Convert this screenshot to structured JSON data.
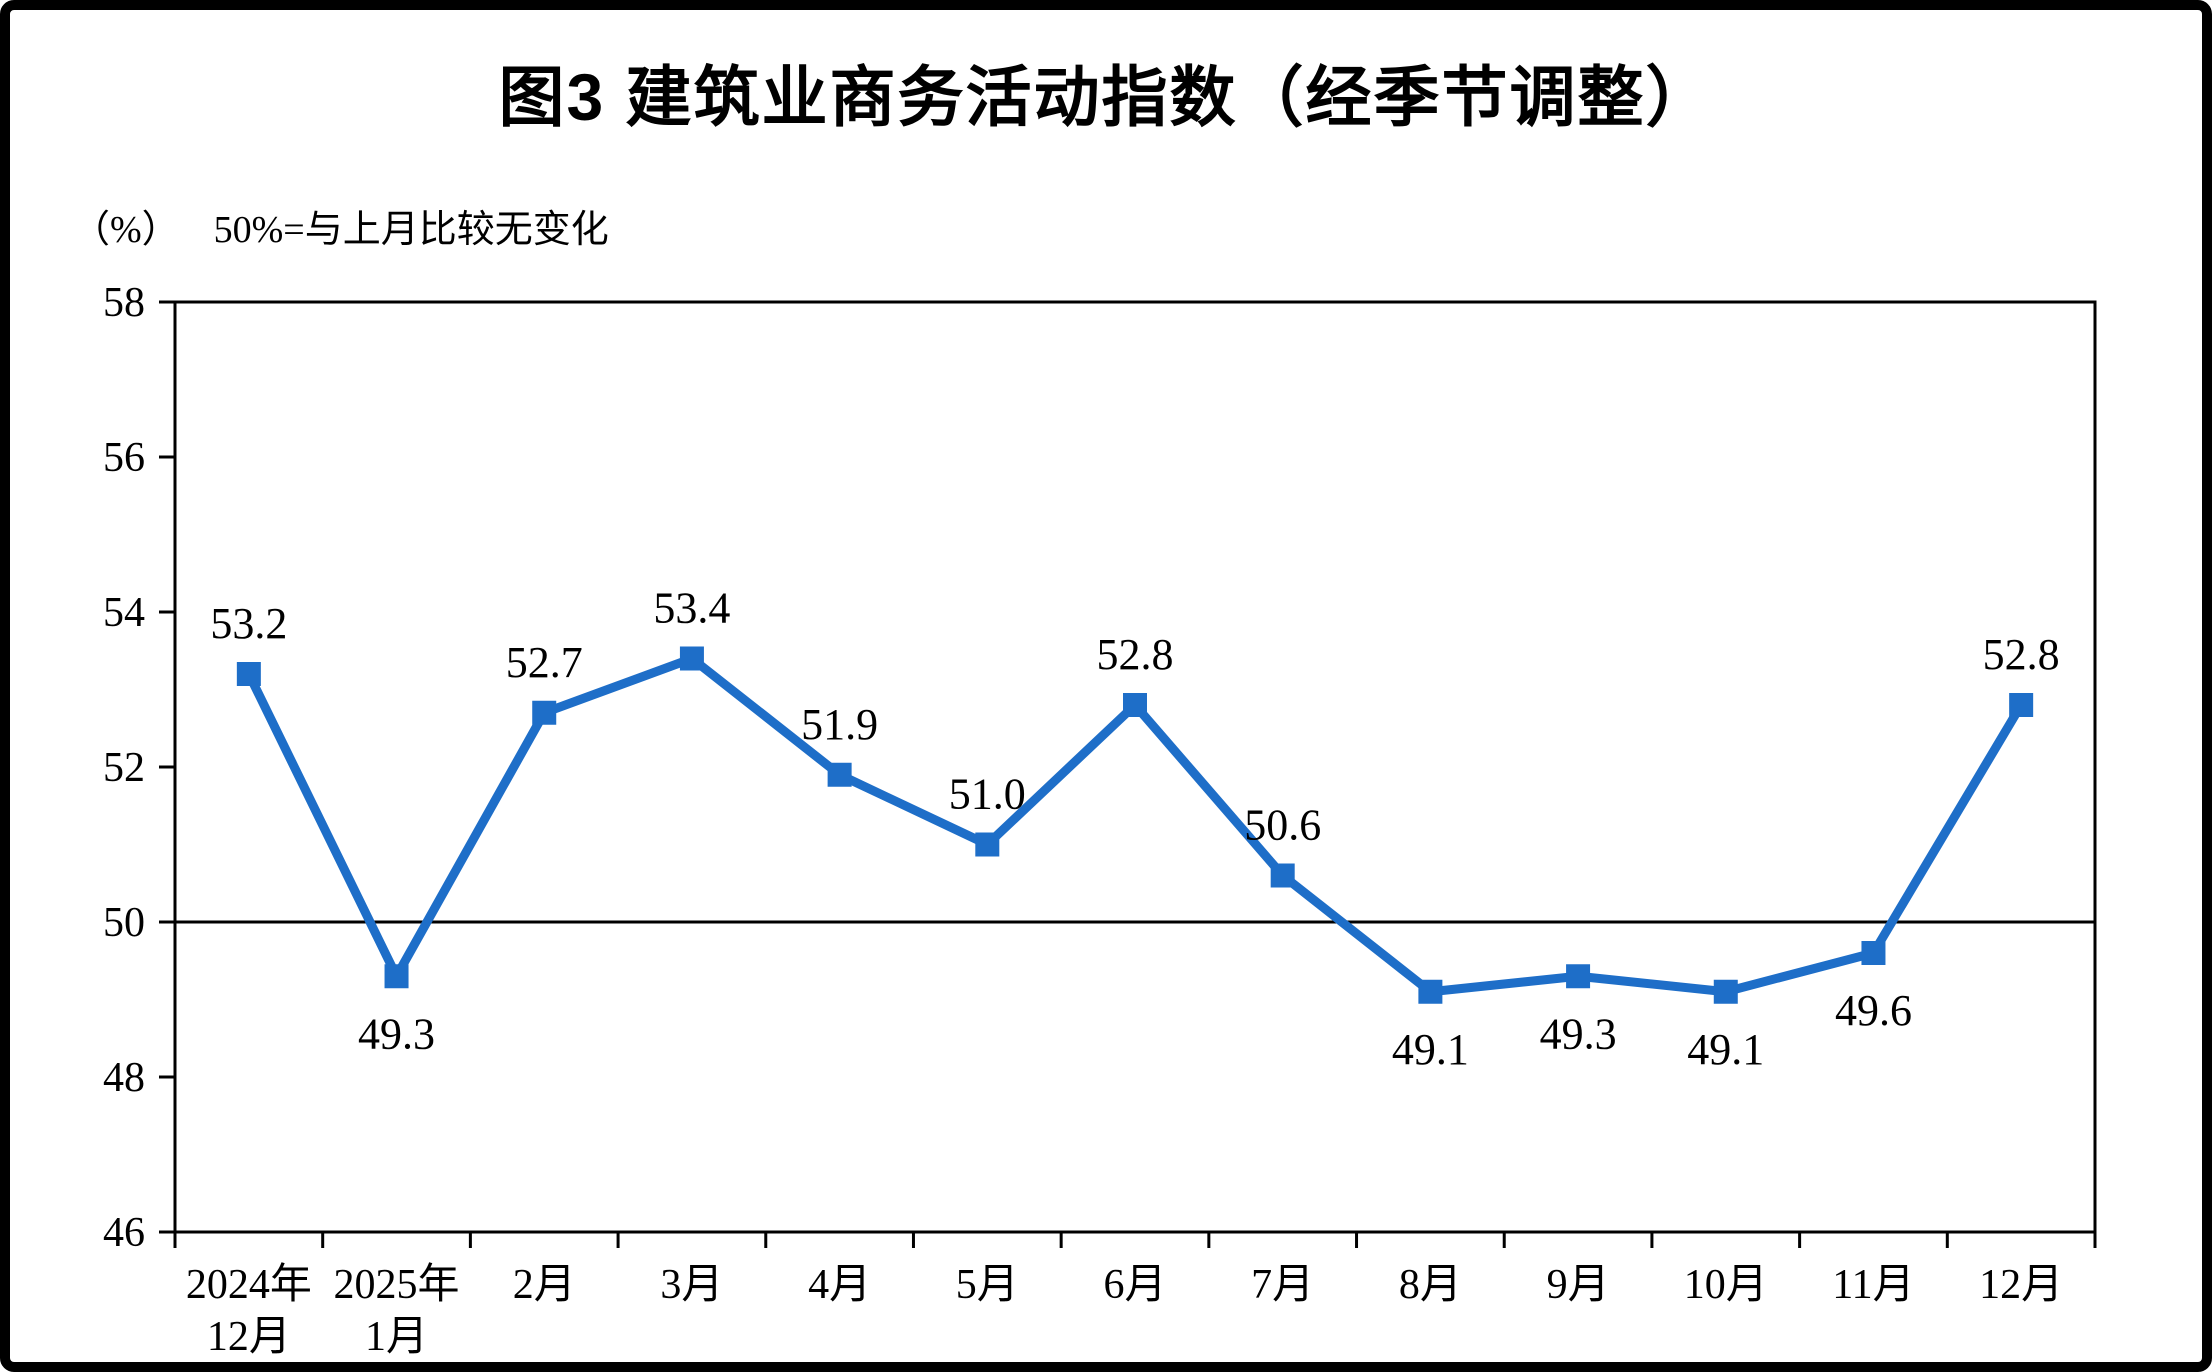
{
  "page": {
    "title": "图3  建筑业商务活动指数（经季节调整）",
    "unit_label": "（%）",
    "note": "50%=与上月比较无变化"
  },
  "chart_data": {
    "type": "line",
    "title": "图3 建筑业商务活动指数（经季节调整）",
    "subtitle": "（%） 50%=与上月比较无变化",
    "categories": [
      "2024年\n12月",
      "2025年\n1月",
      "2月",
      "3月",
      "4月",
      "5月",
      "6月",
      "7月",
      "8月",
      "9月",
      "10月",
      "11月",
      "12月"
    ],
    "series": [
      {
        "name": "建筑业商务活动指数",
        "values": [
          53.2,
          49.3,
          52.7,
          53.4,
          51.9,
          51.0,
          52.8,
          50.6,
          49.1,
          49.3,
          49.1,
          49.6,
          52.8
        ]
      }
    ],
    "data_label_positions": [
      "above",
      "below",
      "above",
      "above",
      "above",
      "above",
      "above",
      "above",
      "below",
      "below",
      "below",
      "below",
      "above"
    ],
    "ylabel": "%",
    "ylim": [
      46,
      58
    ],
    "yticks": [
      46,
      48,
      50,
      52,
      54,
      56,
      58
    ],
    "reference_line": 50,
    "line_color": "#1E6EC8",
    "marker": "square",
    "grid": false,
    "legend": "none"
  }
}
